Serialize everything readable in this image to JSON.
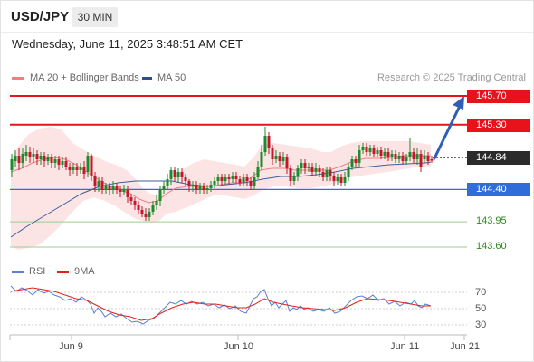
{
  "header": {
    "symbol": "USD/JPY",
    "interval": "30 MIN"
  },
  "datetime": "Wednesday, June 11, 2025 3:48:51 AM CET",
  "legend": {
    "ma20": "MA 20 + Bollinger Bands",
    "ma50": "MA 50",
    "credit": "Research © 2025 Trading Central"
  },
  "levels": [
    {
      "label": "145.70",
      "kind": "resistance"
    },
    {
      "label": "145.30",
      "kind": "resistance"
    },
    {
      "label": "144.84",
      "kind": "last-price"
    },
    {
      "label": "144.40",
      "kind": "pivot"
    },
    {
      "label": "143.95",
      "kind": "support"
    },
    {
      "label": "143.60",
      "kind": "support"
    }
  ],
  "rsi": {
    "legend_rsi": "RSI",
    "legend_ma": "9MA",
    "levels": [
      "70",
      "50",
      "30"
    ]
  },
  "xaxis": [
    "Jun 9",
    "Jun 10",
    "Jun 11",
    "Jun 21"
  ],
  "colors": {
    "resistance": "#e8121a",
    "pivot": "#2f6ed8",
    "support": "#2d8a1c",
    "candle_up": "#1e8a2e",
    "candle_down": "#c2182b",
    "ma20": "#f08080",
    "ma50": "#3a5f9e",
    "bollinger_fill": "#fde4e4",
    "rsi_line": "#5b7fd6",
    "rsi_ma": "#e2231a"
  }
}
